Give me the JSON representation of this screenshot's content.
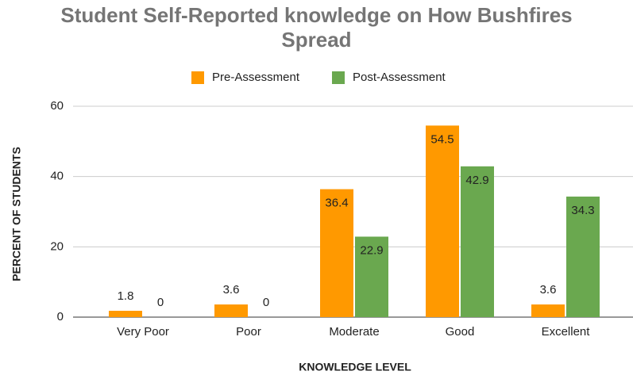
{
  "chart_data": {
    "type": "bar",
    "title": "Student Self-Reported knowledge on How Bushfires Spread",
    "x_label": "KNOWLEDGE LEVEL",
    "y_label": "PERCENT OF STUDENTS",
    "categories": [
      "Very Poor",
      "Poor",
      "Moderate",
      "Good",
      "Excellent"
    ],
    "series": [
      {
        "name": "Pre-Assessment",
        "color": "#ff9900",
        "values": [
          1.8,
          3.6,
          36.4,
          54.5,
          3.6
        ]
      },
      {
        "name": "Post-Assessment",
        "color": "#6aa84f",
        "values": [
          0,
          0,
          22.9,
          42.9,
          34.3
        ]
      }
    ],
    "ylim": [
      0,
      60
    ],
    "yticks": [
      0,
      20,
      40,
      60
    ],
    "grid": true,
    "legend": "top"
  }
}
